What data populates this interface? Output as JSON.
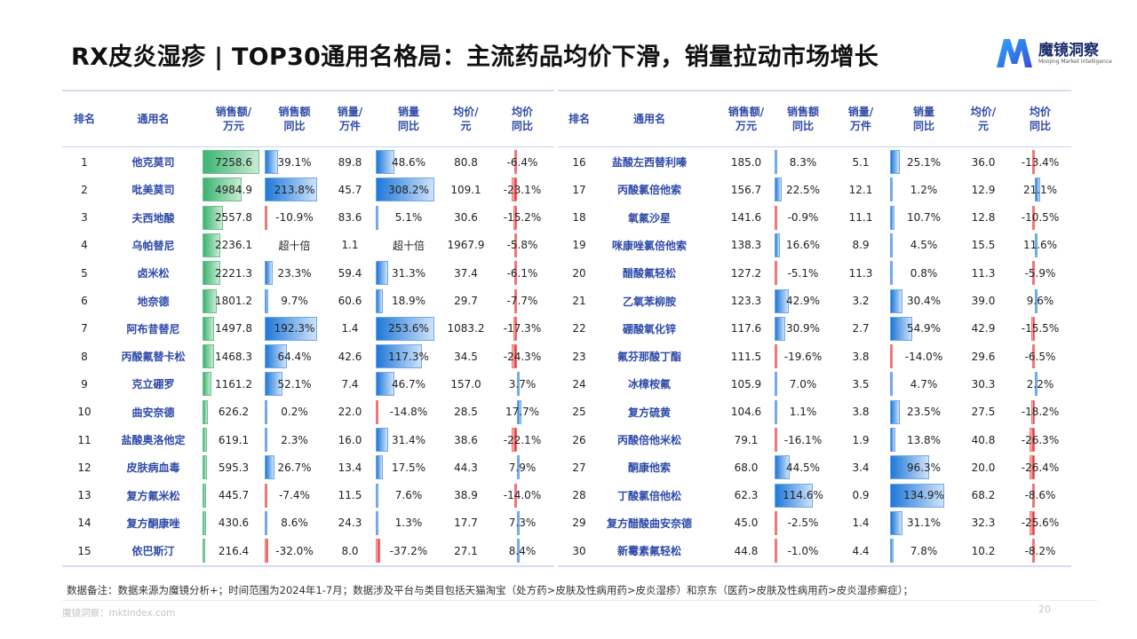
{
  "title": "RX皮炎湿疹 | TOP30通用名格局：主流药品均价下滑，销量拉动市场增长",
  "logo": {
    "name": "魔镜洞察",
    "tagline": "Moojing Market Intelligence"
  },
  "colors": {
    "header_text": "#2e4aa8",
    "sales_bar": "#3cb371",
    "positive_bar": "#1f78d8",
    "negative_bar": "#e02020"
  },
  "headers": [
    "排名",
    "通用名",
    "销售额/\n万元",
    "销售额\n同比",
    "销量/\n万件",
    "销量\n同比",
    "均价/\n元",
    "均价\n同比"
  ],
  "rows_left": [
    {
      "rank": "1",
      "name": "他克莫司",
      "sales": "7258.6",
      "sales_yoy": "39.1%",
      "volume": "89.8",
      "volume_yoy": "48.6%",
      "price": "80.8",
      "price_yoy": "-6.4%"
    },
    {
      "rank": "2",
      "name": "吡美莫司",
      "sales": "4984.9",
      "sales_yoy": "213.8%",
      "volume": "45.7",
      "volume_yoy": "308.2%",
      "price": "109.1",
      "price_yoy": "-23.1%"
    },
    {
      "rank": "3",
      "name": "夫西地酸",
      "sales": "2557.8",
      "sales_yoy": "-10.9%",
      "volume": "83.6",
      "volume_yoy": "5.1%",
      "price": "30.6",
      "price_yoy": "-15.2%"
    },
    {
      "rank": "4",
      "name": "乌帕替尼",
      "sales": "2236.1",
      "sales_yoy": "超十倍",
      "volume": "1.1",
      "volume_yoy": "超十倍",
      "price": "1967.9",
      "price_yoy": "-5.8%"
    },
    {
      "rank": "5",
      "name": "卤米松",
      "sales": "2221.3",
      "sales_yoy": "23.3%",
      "volume": "59.4",
      "volume_yoy": "31.3%",
      "price": "37.4",
      "price_yoy": "-6.1%"
    },
    {
      "rank": "6",
      "name": "地奈德",
      "sales": "1801.2",
      "sales_yoy": "9.7%",
      "volume": "60.6",
      "volume_yoy": "18.9%",
      "price": "29.7",
      "price_yoy": "-7.7%"
    },
    {
      "rank": "7",
      "name": "阿布昔替尼",
      "sales": "1497.8",
      "sales_yoy": "192.3%",
      "volume": "1.4",
      "volume_yoy": "253.6%",
      "price": "1083.2",
      "price_yoy": "-17.3%"
    },
    {
      "rank": "8",
      "name": "丙酸氟替卡松",
      "sales": "1468.3",
      "sales_yoy": "64.4%",
      "volume": "42.6",
      "volume_yoy": "117.3%",
      "price": "34.5",
      "price_yoy": "-24.3%"
    },
    {
      "rank": "9",
      "name": "克立硼罗",
      "sales": "1161.2",
      "sales_yoy": "52.1%",
      "volume": "7.4",
      "volume_yoy": "46.7%",
      "price": "157.0",
      "price_yoy": "3.7%"
    },
    {
      "rank": "10",
      "name": "曲安奈德",
      "sales": "626.2",
      "sales_yoy": "0.2%",
      "volume": "22.0",
      "volume_yoy": "-14.8%",
      "price": "28.5",
      "price_yoy": "17.7%"
    },
    {
      "rank": "11",
      "name": "盐酸奥洛他定",
      "sales": "619.1",
      "sales_yoy": "2.3%",
      "volume": "16.0",
      "volume_yoy": "31.4%",
      "price": "38.6",
      "price_yoy": "-22.1%"
    },
    {
      "rank": "12",
      "name": "皮肤病血毒",
      "sales": "595.3",
      "sales_yoy": "26.7%",
      "volume": "13.4",
      "volume_yoy": "17.5%",
      "price": "44.3",
      "price_yoy": "7.9%"
    },
    {
      "rank": "13",
      "name": "复方氟米松",
      "sales": "445.7",
      "sales_yoy": "-7.4%",
      "volume": "11.5",
      "volume_yoy": "7.6%",
      "price": "38.9",
      "price_yoy": "-14.0%"
    },
    {
      "rank": "14",
      "name": "复方酮康唑",
      "sales": "430.6",
      "sales_yoy": "8.6%",
      "volume": "24.3",
      "volume_yoy": "1.3%",
      "price": "17.7",
      "price_yoy": "7.3%"
    },
    {
      "rank": "15",
      "name": "依巴斯汀",
      "sales": "216.4",
      "sales_yoy": "-32.0%",
      "volume": "8.0",
      "volume_yoy": "-37.2%",
      "price": "27.1",
      "price_yoy": "8.4%"
    }
  ],
  "rows_right": [
    {
      "rank": "16",
      "name": "盐酸左西替利嗪",
      "sales": "185.0",
      "sales_yoy": "8.3%",
      "volume": "5.1",
      "volume_yoy": "25.1%",
      "price": "36.0",
      "price_yoy": "-13.4%"
    },
    {
      "rank": "17",
      "name": "丙酸氯倍他索",
      "sales": "156.7",
      "sales_yoy": "22.5%",
      "volume": "12.1",
      "volume_yoy": "1.2%",
      "price": "12.9",
      "price_yoy": "21.1%"
    },
    {
      "rank": "18",
      "name": "氧氟沙星",
      "sales": "141.6",
      "sales_yoy": "-0.9%",
      "volume": "11.1",
      "volume_yoy": "10.7%",
      "price": "12.8",
      "price_yoy": "-10.5%"
    },
    {
      "rank": "19",
      "name": "咪康唑氯倍他索",
      "sales": "138.3",
      "sales_yoy": "16.6%",
      "volume": "8.9",
      "volume_yoy": "4.5%",
      "price": "15.5",
      "price_yoy": "11.6%"
    },
    {
      "rank": "20",
      "name": "醋酸氟轻松",
      "sales": "127.2",
      "sales_yoy": "-5.1%",
      "volume": "11.3",
      "volume_yoy": "0.8%",
      "price": "11.3",
      "price_yoy": "-5.9%"
    },
    {
      "rank": "21",
      "name": "乙氧苯柳胺",
      "sales": "123.3",
      "sales_yoy": "42.9%",
      "volume": "3.2",
      "volume_yoy": "30.4%",
      "price": "39.0",
      "price_yoy": "9.6%"
    },
    {
      "rank": "22",
      "name": "硼酸氧化锌",
      "sales": "117.6",
      "sales_yoy": "30.9%",
      "volume": "2.7",
      "volume_yoy": "54.9%",
      "price": "42.9",
      "price_yoy": "-15.5%"
    },
    {
      "rank": "23",
      "name": "氟芬那酸丁酯",
      "sales": "111.5",
      "sales_yoy": "-19.6%",
      "volume": "3.8",
      "volume_yoy": "-14.0%",
      "price": "29.6",
      "price_yoy": "-6.5%"
    },
    {
      "rank": "24",
      "name": "冰樟桉氟",
      "sales": "105.9",
      "sales_yoy": "7.0%",
      "volume": "3.5",
      "volume_yoy": "4.7%",
      "price": "30.3",
      "price_yoy": "2.2%"
    },
    {
      "rank": "25",
      "name": "复方硫黄",
      "sales": "104.6",
      "sales_yoy": "1.1%",
      "volume": "3.8",
      "volume_yoy": "23.5%",
      "price": "27.5",
      "price_yoy": "-18.2%"
    },
    {
      "rank": "26",
      "name": "丙酸倍他米松",
      "sales": "79.1",
      "sales_yoy": "-16.1%",
      "volume": "1.9",
      "volume_yoy": "13.8%",
      "price": "40.8",
      "price_yoy": "-26.3%"
    },
    {
      "rank": "27",
      "name": "酮康他索",
      "sales": "68.0",
      "sales_yoy": "44.5%",
      "volume": "3.4",
      "volume_yoy": "96.3%",
      "price": "20.0",
      "price_yoy": "-26.4%"
    },
    {
      "rank": "28",
      "name": "丁酸氯倍他松",
      "sales": "62.3",
      "sales_yoy": "114.6%",
      "volume": "0.9",
      "volume_yoy": "134.9%",
      "price": "68.2",
      "price_yoy": "-8.6%"
    },
    {
      "rank": "29",
      "name": "复方醋酸曲安奈德",
      "sales": "45.0",
      "sales_yoy": "-2.5%",
      "volume": "1.4",
      "volume_yoy": "31.1%",
      "price": "32.3",
      "price_yoy": "-25.6%"
    },
    {
      "rank": "30",
      "name": "新霉素氟轻松",
      "sales": "44.8",
      "sales_yoy": "-1.0%",
      "volume": "4.4",
      "volume_yoy": "7.8%",
      "price": "10.2",
      "price_yoy": "-8.2%"
    }
  ],
  "footnote": "数据备注：数据来源为魔镜分析+；时间范围为2024年1-7月；数据涉及平台与类目包括天猫淘宝（处方药>皮肤及性病用药>皮炎湿疹）和京东（医药>皮肤及性病用药>皮炎湿疹癣症）；",
  "site": "魔镜洞察：mktindex.com",
  "page_number": "20"
}
